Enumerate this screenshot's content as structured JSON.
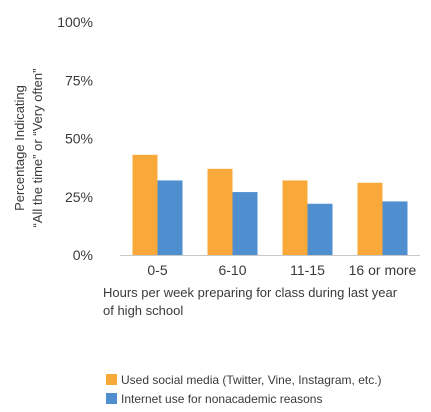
{
  "chart_data": {
    "type": "bar",
    "categories": [
      "0-5",
      "6-10",
      "11-15",
      "16 or more"
    ],
    "series": [
      {
        "name": "Used social media (Twitter, Vine, Instagram, etc.)",
        "values": [
          43,
          37,
          32,
          31
        ],
        "color": "#F9A83A"
      },
      {
        "name": "Internet use for nonacademic reasons",
        "values": [
          32,
          27,
          22,
          23
        ],
        "color": "#4F8FD0"
      }
    ],
    "title": "",
    "xlabel": "Hours per week preparing for class during last year of high school",
    "ylabel_lines": [
      "Percentage Indicating",
      "“All the time” or “Very often”"
    ],
    "y_ticks": [
      "0%",
      "25%",
      "50%",
      "75%",
      "100%"
    ],
    "ylim": [
      0,
      100
    ],
    "grid": false,
    "legend_position": "bottom"
  }
}
